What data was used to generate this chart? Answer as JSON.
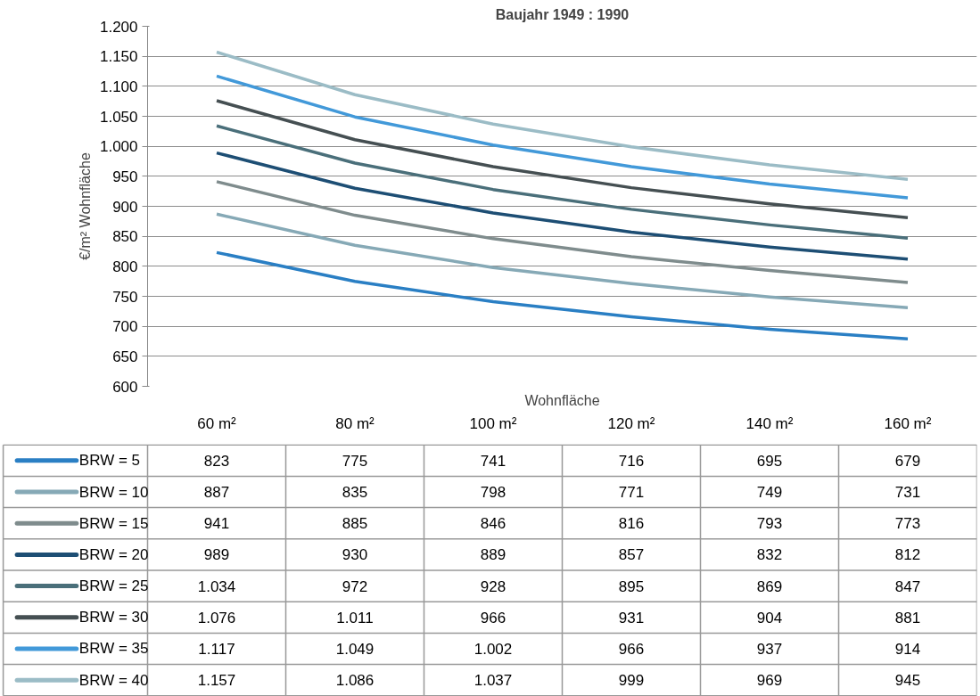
{
  "chart_data": {
    "type": "line",
    "title": "Baujahr 1949 : 1990",
    "xlabel": "Wohnfläche",
    "ylabel": "€/m² Wohnfläche",
    "categories": [
      "60 m²",
      "80 m²",
      "100 m²",
      "120 m²",
      "140 m²",
      "160 m²"
    ],
    "ylim": [
      600,
      1200
    ],
    "yticks": [
      {
        "value": 600,
        "label": "600"
      },
      {
        "value": 650,
        "label": "650"
      },
      {
        "value": 700,
        "label": "700"
      },
      {
        "value": 750,
        "label": "750"
      },
      {
        "value": 800,
        "label": "800"
      },
      {
        "value": 850,
        "label": "850"
      },
      {
        "value": 900,
        "label": "900"
      },
      {
        "value": 950,
        "label": "950"
      },
      {
        "value": 1000,
        "label": "1.000"
      },
      {
        "value": 1050,
        "label": "1.050"
      },
      {
        "value": 1100,
        "label": "1.100"
      },
      {
        "value": 1150,
        "label": "1.150"
      },
      {
        "value": 1200,
        "label": "1.200"
      }
    ],
    "grid": "y",
    "legend": "bottom left",
    "series": [
      {
        "name": "BRW = 5",
        "color": "#2a7fc4",
        "values": [
          823,
          775,
          741,
          716,
          695,
          679
        ],
        "value_labels": [
          "823",
          "775",
          "741",
          "716",
          "695",
          "679"
        ]
      },
      {
        "name": "BRW = 10",
        "color": "#86a9b6",
        "values": [
          887,
          835,
          798,
          771,
          749,
          731
        ],
        "value_labels": [
          "887",
          "835",
          "798",
          "771",
          "749",
          "731"
        ]
      },
      {
        "name": "BRW = 15",
        "color": "#7f8c8d",
        "values": [
          941,
          885,
          846,
          816,
          793,
          773
        ],
        "value_labels": [
          "941",
          "885",
          "846",
          "816",
          "793",
          "773"
        ]
      },
      {
        "name": "BRW = 20",
        "color": "#1d4e74",
        "values": [
          989,
          930,
          889,
          857,
          832,
          812
        ],
        "value_labels": [
          "989",
          "930",
          "889",
          "857",
          "832",
          "812"
        ]
      },
      {
        "name": "BRW = 25",
        "color": "#4a6f7a",
        "values": [
          1034,
          972,
          928,
          895,
          869,
          847
        ],
        "value_labels": [
          "1.034",
          "972",
          "928",
          "895",
          "869",
          "847"
        ]
      },
      {
        "name": "BRW = 30",
        "color": "#454f52",
        "values": [
          1076,
          1011,
          966,
          931,
          904,
          881
        ],
        "value_labels": [
          "1.076",
          "1.011",
          "966",
          "931",
          "904",
          "881"
        ]
      },
      {
        "name": "BRW = 35",
        "color": "#4299d9",
        "values": [
          1117,
          1049,
          1002,
          966,
          937,
          914
        ],
        "value_labels": [
          "1.117",
          "1.049",
          "1.002",
          "966",
          "937",
          "914"
        ]
      },
      {
        "name": "BRW = 40",
        "color": "#9bbcc6",
        "values": [
          1157,
          1086,
          1037,
          999,
          969,
          945
        ],
        "value_labels": [
          "1.157",
          "1.086",
          "1.037",
          "999",
          "969",
          "945"
        ]
      }
    ]
  }
}
